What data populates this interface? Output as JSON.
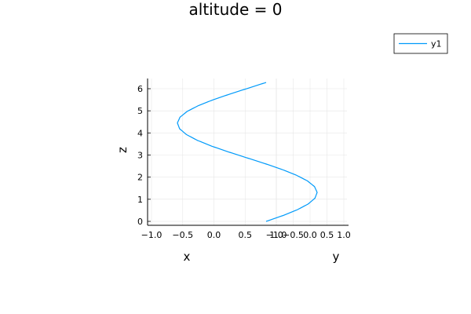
{
  "chart_data": {
    "type": "line",
    "title": "altitude = 0",
    "xlabel": "x",
    "ylabel": "y",
    "zlabel": "z",
    "xlim": [
      -1.0,
      1.0
    ],
    "ylim": [
      -1.0,
      1.0
    ],
    "zlim": [
      0,
      6.3
    ],
    "x_ticks": [
      "−1.0",
      "−0.5",
      "0.0",
      "0.5",
      "1.0"
    ],
    "y_ticks": [
      "−1.0",
      "−0.5",
      "0.0",
      "0.5",
      "1.0"
    ],
    "z_ticks": [
      "0",
      "1",
      "2",
      "3",
      "4",
      "5",
      "6"
    ],
    "grid": true,
    "legend_position": "top-right",
    "series": [
      {
        "name": "y1",
        "color": "#009AFA",
        "x": [
          1.0,
          0.966,
          0.866,
          0.707,
          0.5,
          0.259,
          0.0,
          -0.259,
          -0.5,
          -0.707,
          -0.866,
          -0.966,
          -1.0,
          -0.966,
          -0.866,
          -0.707,
          -0.5,
          -0.259,
          0.0,
          0.259,
          0.5,
          0.707,
          0.866,
          0.966,
          1.0
        ],
        "y": [
          0.0,
          0.259,
          0.5,
          0.707,
          0.866,
          0.966,
          1.0,
          0.966,
          0.866,
          0.707,
          0.5,
          0.259,
          0.0,
          -0.259,
          -0.5,
          -0.707,
          -0.866,
          -0.966,
          -1.0,
          -0.966,
          -0.866,
          -0.707,
          -0.5,
          -0.259,
          0.0
        ],
        "z": [
          0.0,
          0.262,
          0.524,
          0.785,
          1.047,
          1.309,
          1.571,
          1.833,
          2.094,
          2.356,
          2.618,
          2.88,
          3.142,
          3.403,
          3.665,
          3.927,
          4.189,
          4.451,
          4.712,
          4.974,
          5.236,
          5.498,
          5.76,
          6.021,
          6.283
        ]
      }
    ]
  }
}
